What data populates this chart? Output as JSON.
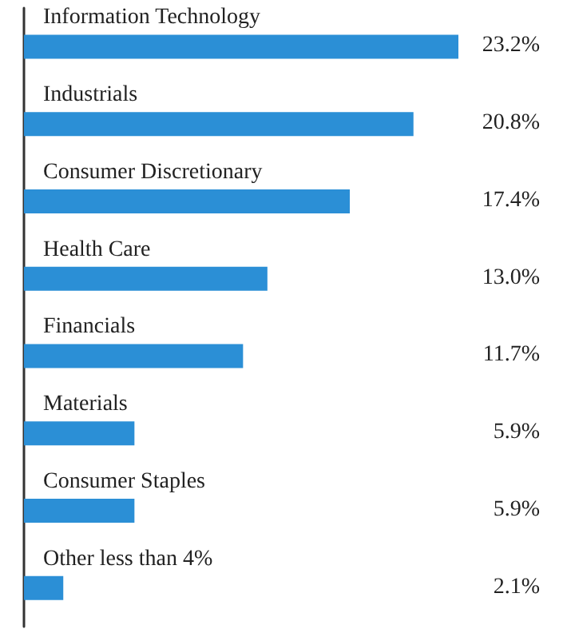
{
  "chart_data": {
    "type": "bar",
    "orientation": "horizontal",
    "categories": [
      "Information Technology",
      "Industrials",
      "Consumer Discretionary",
      "Health Care",
      "Financials",
      "Materials",
      "Consumer Staples",
      "Other less than 4%"
    ],
    "values": [
      23.2,
      20.8,
      17.4,
      13.0,
      11.7,
      5.9,
      5.9,
      2.1
    ],
    "value_labels": [
      "23.2%",
      "20.8%",
      "17.4%",
      "13.0%",
      "11.7%",
      "5.9%",
      "5.9%",
      "2.1%"
    ],
    "color": "#2b8fd6"
  }
}
